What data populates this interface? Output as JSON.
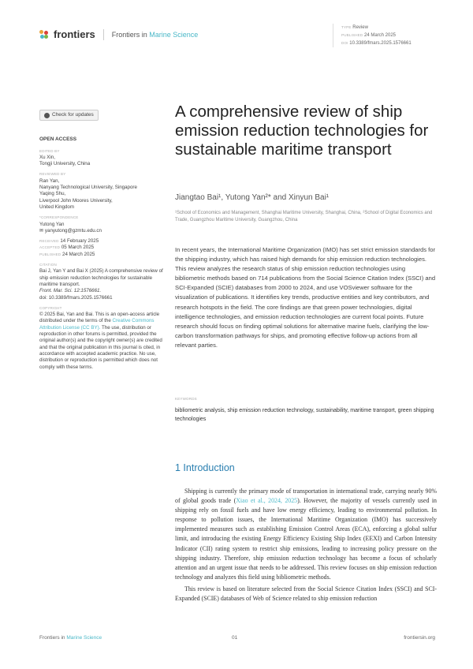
{
  "header": {
    "brand": "frontiers",
    "journal_prefix": "Frontiers in ",
    "journal_name": "Marine Science",
    "type_label": "TYPE",
    "type": "Review",
    "published_label": "PUBLISHED",
    "published": "24 March 2025",
    "doi_label": "DOI",
    "doi": "10.3389/fmars.2025.1576661"
  },
  "sidebar": {
    "check_updates": "Check for updates",
    "open_access": "OPEN ACCESS",
    "edited_label": "EDITED BY",
    "edited": [
      "Xu Xin,",
      "Tongji University, China"
    ],
    "reviewed_label": "REVIEWED BY",
    "reviewed": [
      "Ran Yan,",
      "Nanyang Technological University, Singapore",
      "Yaqing Shu,",
      "Liverpool John Moores University,",
      "United Kingdom"
    ],
    "corr_label": "*CORRESPONDENCE",
    "corr_name": "Yutong Yan",
    "corr_email": "yanyutong@gzmtu.edu.cn",
    "received_label": "RECEIVED",
    "received": "14 February 2025",
    "accepted_label": "ACCEPTED",
    "accepted": "05 March 2025",
    "published_label": "PUBLISHED",
    "published": "24 March 2025",
    "citation_label": "CITATION",
    "citation": "Bai J, Yan Y and Bai X (2025) A comprehensive review of ship emission reduction technologies for sustainable maritime transport.",
    "citation_journal": "Front. Mar. Sci. 12:1576661.",
    "citation_doi": "doi: 10.3389/fmars.2025.1576661",
    "copyright_label": "COPYRIGHT",
    "copyright_a": "© 2025 Bai, Yan and Bai. This is an open-access article distributed under the terms of the ",
    "copyright_link": "Creative Commons Attribution License (CC BY).",
    "copyright_b": " The use, distribution or reproduction in other forums is permitted, provided the original author(s) and the copyright owner(s) are credited and that the original publication in this journal is cited, in accordance with accepted academic practice. No use, distribution or reproduction is permitted which does not comply with these terms."
  },
  "article": {
    "title": "A comprehensive review of ship emission reduction technologies for sustainable maritime transport",
    "authors": "Jiangtao Bai¹, Yutong Yan²* and Xinyun Bai¹",
    "affiliations": "¹School of Economics and Management, Shanghai Maritime University, Shanghai, China, ²School of Digital Economics and Trade, Guangzhou Maritime University, Guangzhou, China",
    "abstract": "In recent years, the International Maritime Organization (IMO) has set strict emission standards for the shipping industry, which has raised high demands for ship emission reduction technologies. This review analyzes the research status of ship emission reduction technologies using bibliometric methods based on 714 publications from the Social Science Citation Index (SSCI) and SCI-Expanded (SCIE) databases from 2000 to 2024, and use VOSviewer software for the visualization of publications. It identifies key trends, productive entities and key contributors, and research hotspots in the field. The core findings are that green power technologies, digital intelligence technologies, and emission reduction technologies are current focal points. Future research should focus on finding optimal solutions for alternative marine fuels, clarifying the low-carbon transformation pathways for ships, and promoting effective follow-up actions from all relevant parties.",
    "keywords_label": "KEYWORDS",
    "keywords": "bibliometric analysis, ship emission reduction technology, sustainability, maritime transport, green shipping technologies",
    "section_title": "1 Introduction",
    "p1_a": "Shipping is currently the primary mode of transportation in international trade, carrying nearly 90% of global goods trade (",
    "p1_cite": "Xiao et al., 2024, 2025",
    "p1_b": "). However, the majority of vessels currently used in shipping rely on fossil fuels and have low energy efficiency, leading to environmental pollution. In response to pollution issues, the International Maritime Organization (IMO) has successively implemented measures such as establishing Emission Control Areas (ECA), enforcing a global sulfur limit, and introducing the existing Energy Efficiency Existing Ship Index (EEXI) and Carbon Intensity Indicator (CII) rating system to restrict ship emissions, leading to increasing policy pressure on the shipping industry. Therefore, ship emission reduction technology has become a focus of scholarly attention and an urgent issue that needs to be addressed. This review focuses on ship emission reduction technology and analyzes this field using bibliometric methods.",
    "p2": "This review is based on literature selected from the Social Science Citation Index (SSCI) and SCI-Expanded (SCIE) databases of Web of Science related to ship emission reduction"
  },
  "footer": {
    "journal_prefix": "Frontiers in ",
    "journal_name": "Marine Science",
    "page": "01",
    "site": "frontiersin.org"
  },
  "colors": {
    "accent": "#4bb8c8",
    "heading": "#2a7fb0"
  }
}
